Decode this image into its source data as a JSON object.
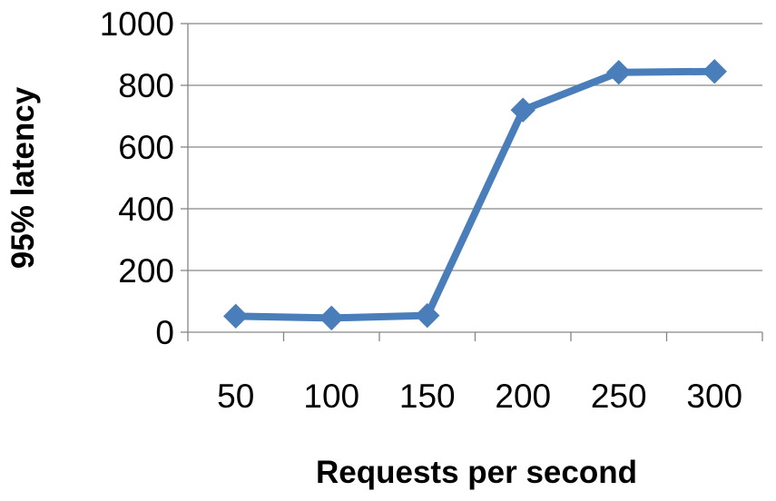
{
  "chart_data": {
    "type": "line",
    "title": "",
    "xlabel": "Requests per second",
    "ylabel": "95% latency",
    "categories": [
      "50",
      "100",
      "150",
      "200",
      "250",
      "300"
    ],
    "series": [
      {
        "values": [
          52,
          46,
          54,
          720,
          842,
          845
        ]
      }
    ],
    "ylim": [
      0,
      1000
    ],
    "yticks": [
      0,
      200,
      400,
      600,
      800,
      1000
    ],
    "grid": "horizontal",
    "legend": "none",
    "colors": {
      "series": "#4a7ebb",
      "grid": "#868686",
      "axis": "#868686"
    },
    "marker": "diamond"
  }
}
